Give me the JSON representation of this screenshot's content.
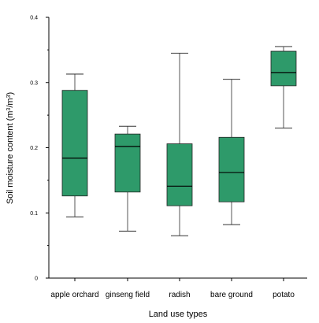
{
  "chart_data": {
    "type": "box",
    "xlabel": "Land use types",
    "ylabel": "Soil moisture content (m",
    "ylabel_unit_sup": "3",
    "ylabel_sep": "/m",
    "ylabel_unit_sup2": "3",
    "ylabel_close": ")",
    "ylim": [
      0,
      0.4
    ],
    "yticks": [
      "0",
      "0.1",
      "0.2",
      "0.3",
      "0.4"
    ],
    "box_color": "#2e9a6a",
    "categories": [
      "apple orchard",
      "ginseng field",
      "radish",
      "bare ground",
      "potato"
    ],
    "boxes": [
      {
        "min": 0.094,
        "q1": 0.126,
        "median": 0.184,
        "q3": 0.288,
        "max": 0.313
      },
      {
        "min": 0.072,
        "q1": 0.132,
        "median": 0.202,
        "q3": 0.221,
        "max": 0.233
      },
      {
        "min": 0.065,
        "q1": 0.111,
        "median": 0.141,
        "q3": 0.206,
        "max": 0.345
      },
      {
        "min": 0.082,
        "q1": 0.117,
        "median": 0.162,
        "q3": 0.216,
        "max": 0.305
      },
      {
        "min": 0.23,
        "q1": 0.295,
        "median": 0.315,
        "q3": 0.348,
        "max": 0.355
      }
    ]
  }
}
